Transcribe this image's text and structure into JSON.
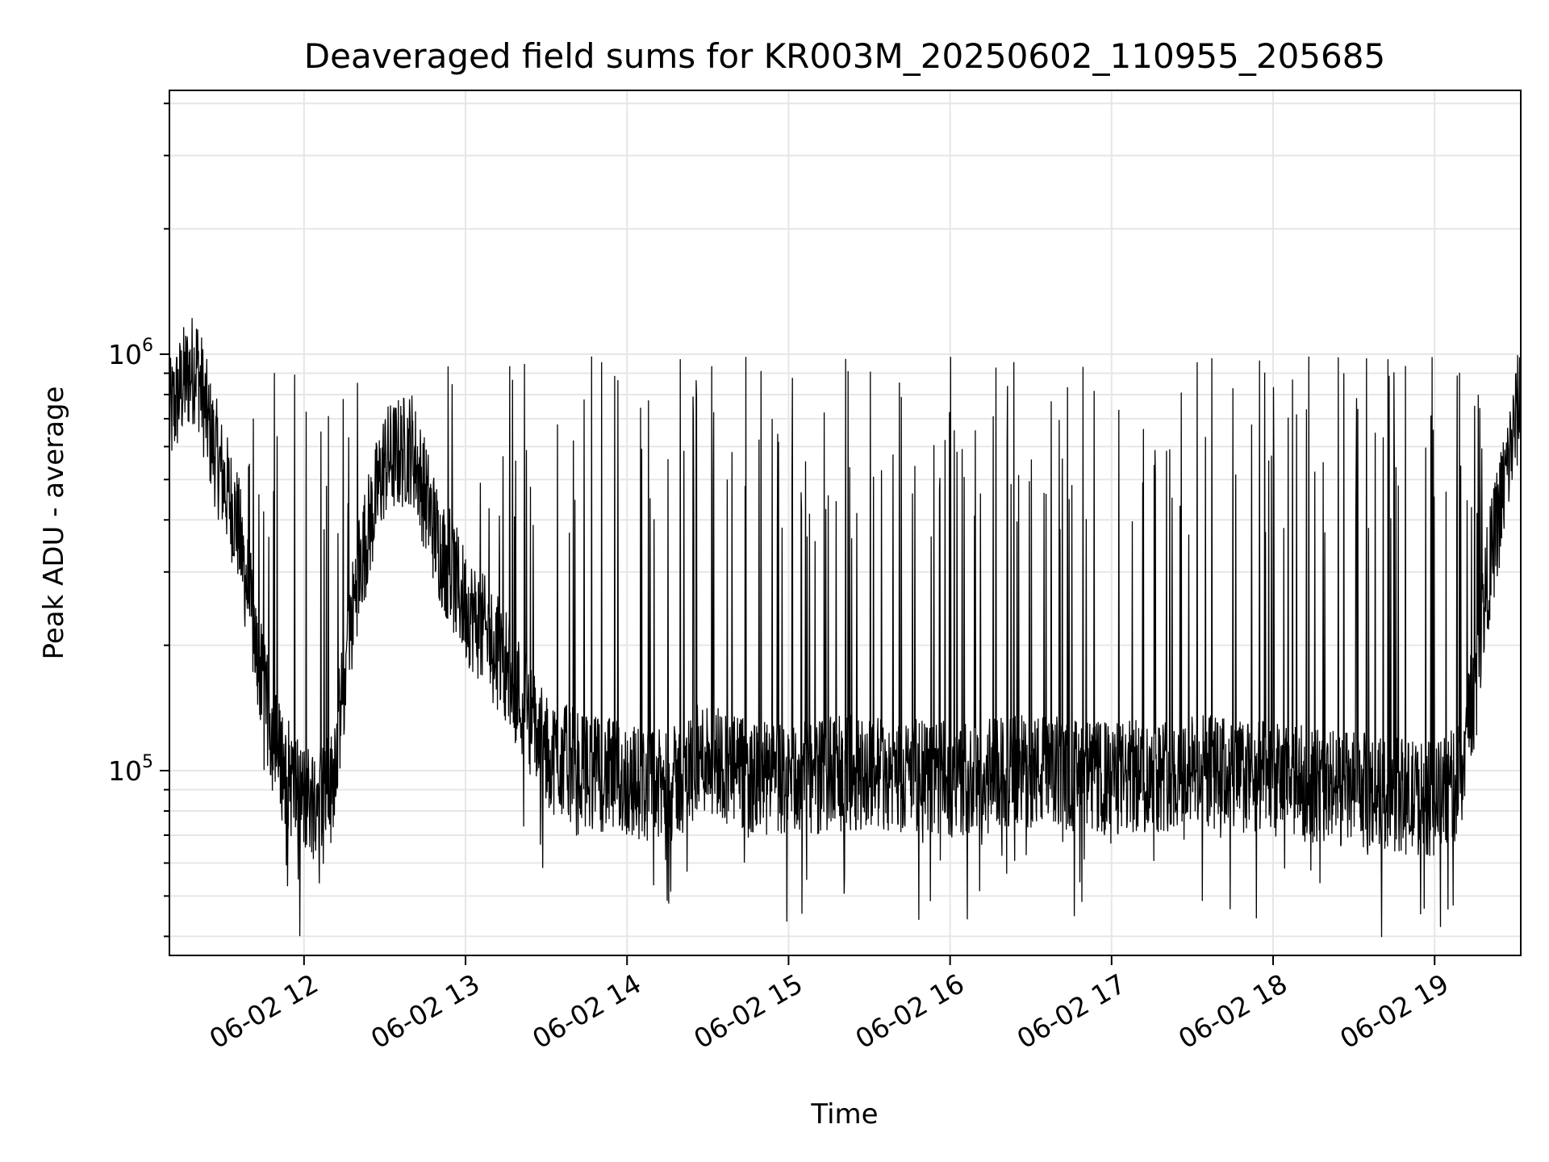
{
  "chart_data": {
    "type": "line",
    "title": "Deaveraged field sums for KR003M_20250602_110955_205685",
    "xlabel": "Time",
    "ylabel": "Peak ADU - average",
    "x_scale": "time",
    "y_scale": "log",
    "xlim": [
      "2025-06-02 11:10",
      "2025-06-02 19:32"
    ],
    "ylim": [
      36000,
      4300000
    ],
    "x_ticks": [
      "2025-06-02 12:00",
      "2025-06-02 13:00",
      "2025-06-02 14:00",
      "2025-06-02 15:00",
      "2025-06-02 16:00",
      "2025-06-02 17:00",
      "2025-06-02 18:00",
      "2025-06-02 19:00"
    ],
    "x_tick_labels": [
      "06-02 12",
      "06-02 13",
      "06-02 14",
      "06-02 15",
      "06-02 16",
      "06-02 17",
      "06-02 18",
      "06-02 19"
    ],
    "y_ticks": [
      100000,
      1000000
    ],
    "y_tick_labels": [
      {
        "base": "10",
        "exp": "5"
      },
      {
        "base": "10",
        "exp": "6"
      }
    ],
    "grid": true,
    "line_color": "#000000",
    "grid_color": "#e6e6e6",
    "series": [
      {
        "x": [
          "2025-06-02 11:10",
          "2025-06-02 11:15",
          "2025-06-02 11:20",
          "2025-06-02 11:25",
          "2025-06-02 11:30",
          "2025-06-02 11:35",
          "2025-06-02 11:40",
          "2025-06-02 11:45",
          "2025-06-02 11:50",
          "2025-06-02 11:55",
          "2025-06-02 12:00",
          "2025-06-02 12:10",
          "2025-06-02 12:20",
          "2025-06-02 12:30",
          "2025-06-02 12:40",
          "2025-06-02 12:50",
          "2025-06-02 13:00",
          "2025-06-02 13:15",
          "2025-06-02 13:30",
          "2025-06-02 13:45",
          "2025-06-02 14:00",
          "2025-06-02 14:15",
          "2025-06-02 14:30",
          "2025-06-02 14:45",
          "2025-06-02 15:00",
          "2025-06-02 15:30",
          "2025-06-02 16:00",
          "2025-06-02 16:30",
          "2025-06-02 17:00",
          "2025-06-02 17:30",
          "2025-06-02 18:00",
          "2025-06-02 18:30",
          "2025-06-02 19:00",
          "2025-06-02 19:10",
          "2025-06-02 19:20",
          "2025-06-02 19:32"
        ],
        "values": [
          700000,
          850000,
          950000,
          650000,
          500000,
          400000,
          250000,
          150000,
          110000,
          95000,
          85000,
          90000,
          300000,
          550000,
          600000,
          350000,
          250000,
          180000,
          110000,
          100000,
          95000,
          90000,
          110000,
          95000,
          95000,
          100000,
          95000,
          100000,
          95000,
          100000,
          95000,
          90000,
          85000,
          95000,
          300000,
          800000
        ]
      }
    ]
  }
}
